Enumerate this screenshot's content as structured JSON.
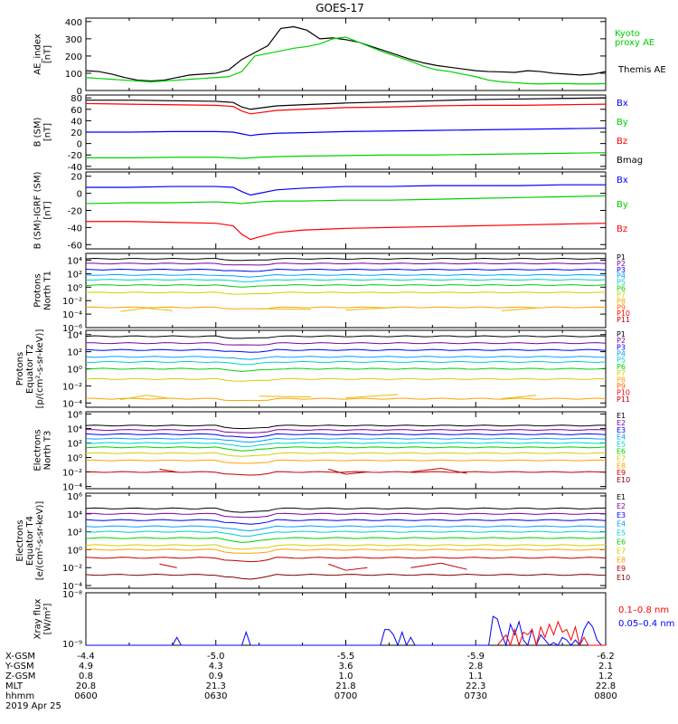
{
  "title": "GOES-17",
  "panels": [
    {
      "id": "ae",
      "ylabel": [
        "AE_index",
        "[nT]"
      ],
      "ylim": [
        0,
        420
      ],
      "yticks": [
        {
          "v": 400,
          "t": "400"
        },
        {
          "v": 300,
          "t": "300"
        },
        {
          "v": 200,
          "t": "200"
        },
        {
          "v": 100,
          "t": "100"
        },
        {
          "v": 0,
          "t": "0"
        }
      ],
      "legend": [
        {
          "text": "Kyoto",
          "color": "#00d000"
        },
        {
          "text": "proxy AE",
          "color": "#00d000"
        },
        {
          "text": "Themis AE",
          "color": "#000000"
        }
      ],
      "series": [
        {
          "name": "Themis AE",
          "color": "#000000",
          "x": [
            0,
            3,
            6,
            9,
            12,
            15,
            18,
            21,
            24,
            27,
            30,
            33,
            36,
            39,
            42,
            45,
            48,
            51,
            54,
            57,
            60,
            63,
            66,
            69,
            72,
            75,
            78,
            81,
            84,
            87,
            90,
            93,
            96,
            99,
            102,
            105,
            108,
            111,
            114,
            117,
            120
          ],
          "y": [
            115,
            110,
            95,
            75,
            60,
            55,
            60,
            75,
            90,
            95,
            100,
            120,
            180,
            220,
            260,
            360,
            370,
            350,
            300,
            305,
            295,
            280,
            255,
            230,
            205,
            180,
            160,
            145,
            135,
            125,
            115,
            110,
            108,
            105,
            115,
            110,
            100,
            95,
            90,
            95,
            110
          ]
        },
        {
          "name": "Kyoto proxy AE",
          "color": "#00d000",
          "x": [
            0,
            3,
            6,
            9,
            12,
            15,
            18,
            21,
            24,
            27,
            30,
            33,
            36,
            39,
            42,
            45,
            48,
            51,
            54,
            57,
            60,
            63,
            66,
            69,
            72,
            75,
            78,
            81,
            84,
            87,
            90,
            93,
            96,
            99,
            102,
            105,
            108,
            111,
            114,
            117,
            120
          ],
          "y": [
            75,
            70,
            65,
            60,
            55,
            50,
            55,
            60,
            65,
            70,
            75,
            80,
            110,
            200,
            215,
            230,
            245,
            255,
            270,
            300,
            310,
            280,
            250,
            220,
            195,
            170,
            140,
            120,
            110,
            95,
            80,
            60,
            50,
            45,
            40,
            38,
            40,
            40,
            38,
            38,
            40
          ]
        }
      ]
    },
    {
      "id": "bsm",
      "ylabel": [
        "B (SM)",
        "[nT]"
      ],
      "ylim": [
        -45,
        85
      ],
      "yticks": [
        {
          "v": 80,
          "t": "80"
        },
        {
          "v": 60,
          "t": "60"
        },
        {
          "v": 40,
          "t": "40"
        },
        {
          "v": 20,
          "t": "20"
        },
        {
          "v": 0,
          "t": "0"
        },
        {
          "v": -20,
          "t": "-20"
        },
        {
          "v": -40,
          "t": "-40"
        }
      ],
      "legend": [
        {
          "text": "Bx",
          "color": "#0000ff"
        },
        {
          "text": "By",
          "color": "#00d000"
        },
        {
          "text": "Bz",
          "color": "#ff0000"
        },
        {
          "text": "Bmag",
          "color": "#000000"
        }
      ],
      "series": [
        {
          "name": "Bmag",
          "color": "#000000",
          "x": [
            0,
            10,
            20,
            30,
            34,
            36,
            38,
            40,
            44,
            50,
            60,
            70,
            80,
            90,
            100,
            110,
            120
          ],
          "y": [
            76,
            76,
            75,
            74,
            72,
            64,
            60,
            62,
            66,
            68,
            71,
            73,
            75,
            77,
            78,
            79,
            80
          ]
        },
        {
          "name": "Bz",
          "color": "#ff0000",
          "x": [
            0,
            10,
            20,
            30,
            34,
            36,
            38,
            40,
            44,
            50,
            60,
            70,
            80,
            90,
            100,
            110,
            120
          ],
          "y": [
            70,
            69,
            68,
            67,
            65,
            57,
            52,
            54,
            58,
            60,
            63,
            64,
            66,
            67,
            67,
            68,
            69
          ]
        },
        {
          "name": "Bx",
          "color": "#0000ff",
          "x": [
            0,
            10,
            20,
            30,
            34,
            36,
            38,
            40,
            44,
            50,
            60,
            70,
            80,
            90,
            100,
            110,
            120
          ],
          "y": [
            20,
            20,
            21,
            21,
            20,
            17,
            14,
            16,
            18,
            19,
            21,
            22,
            23,
            24,
            25,
            26,
            27
          ]
        },
        {
          "name": "By",
          "color": "#00d000",
          "x": [
            0,
            10,
            20,
            30,
            34,
            36,
            38,
            40,
            44,
            50,
            60,
            70,
            80,
            90,
            100,
            110,
            120
          ],
          "y": [
            -25,
            -25,
            -24,
            -24,
            -25,
            -26,
            -25,
            -24,
            -23,
            -22,
            -21,
            -20,
            -20,
            -19,
            -18,
            -17,
            -16
          ]
        }
      ]
    },
    {
      "id": "bigrf",
      "ylabel": [
        "B (SM)-IGRF (SM)",
        "[nT]"
      ],
      "ylim": [
        -65,
        25
      ],
      "yticks": [
        {
          "v": 20,
          "t": "20"
        },
        {
          "v": 0,
          "t": "0"
        },
        {
          "v": -20,
          "t": "-20"
        },
        {
          "v": -40,
          "t": "-40"
        },
        {
          "v": -60,
          "t": "-60"
        }
      ],
      "legend": [
        {
          "text": "Bx",
          "color": "#0000ff"
        },
        {
          "text": "By",
          "color": "#00d000"
        },
        {
          "text": "Bz",
          "color": "#ff0000"
        }
      ],
      "series": [
        {
          "name": "Bx",
          "color": "#0000ff",
          "x": [
            0,
            10,
            20,
            30,
            34,
            36,
            38,
            40,
            44,
            50,
            60,
            70,
            80,
            90,
            100,
            110,
            120
          ],
          "y": [
            7,
            7,
            8,
            8,
            7,
            2,
            -2,
            0,
            4,
            6,
            8,
            8,
            9,
            9,
            9,
            10,
            10
          ]
        },
        {
          "name": "By",
          "color": "#00d000",
          "x": [
            0,
            10,
            20,
            30,
            34,
            36,
            38,
            40,
            44,
            50,
            60,
            70,
            80,
            90,
            100,
            110,
            120
          ],
          "y": [
            -12,
            -11,
            -11,
            -10,
            -11,
            -12,
            -11,
            -10,
            -9,
            -9,
            -8,
            -8,
            -7,
            -6,
            -5,
            -4,
            -3
          ]
        },
        {
          "name": "Bz",
          "color": "#ff0000",
          "x": [
            0,
            10,
            20,
            30,
            34,
            36,
            38,
            40,
            44,
            50,
            60,
            70,
            80,
            90,
            100,
            110,
            120
          ],
          "y": [
            -33,
            -33,
            -34,
            -35,
            -38,
            -48,
            -54,
            -51,
            -46,
            -43,
            -41,
            -40,
            -39,
            -38,
            -37,
            -36,
            -35
          ]
        }
      ]
    }
  ],
  "log_panels": [
    {
      "id": "protons-north",
      "ylabel": [
        "Protons",
        "North T1"
      ],
      "decades": [
        -6,
        5
      ],
      "yticks": [
        {
          "v": 4,
          "t": "10⁴"
        },
        {
          "v": 2,
          "t": "10²"
        },
        {
          "v": 0,
          "t": "10⁰"
        },
        {
          "v": -2,
          "t": "10⁻²"
        },
        {
          "v": -4,
          "t": "10⁻⁴"
        },
        {
          "v": -6,
          "t": "10⁻⁶"
        }
      ],
      "legend": [
        {
          "text": "P1",
          "color": "#000000"
        },
        {
          "text": "P2",
          "color": "#8000a0"
        },
        {
          "text": "P3",
          "color": "#0000ff"
        },
        {
          "text": "P4",
          "color": "#00a0ff"
        },
        {
          "text": "P5",
          "color": "#00d0d0"
        },
        {
          "text": "P6",
          "color": "#00d000"
        },
        {
          "text": "P7",
          "color": "#d0d000"
        },
        {
          "text": "P8",
          "color": "#ffa000"
        },
        {
          "text": "P9",
          "color": "#ff6000"
        },
        {
          "text": "P10",
          "color": "#ff0000"
        },
        {
          "text": "P11",
          "color": "#c00000"
        }
      ],
      "levels": [
        4.2,
        3.5,
        2.6,
        1.8,
        1.1,
        0.3,
        -0.8,
        -3.0
      ]
    },
    {
      "id": "protons-equator",
      "ylabel": [
        "Protons",
        "Equator T2",
        "[p/(cm²-s-sr-keV)]"
      ],
      "decades": [
        -4.5,
        4.5
      ],
      "yticks": [
        {
          "v": 4,
          "t": "10⁴"
        },
        {
          "v": 2,
          "t": "10²"
        },
        {
          "v": 0,
          "t": "10⁰"
        },
        {
          "v": -2,
          "t": "10⁻²"
        },
        {
          "v": -4,
          "t": "10⁻⁴"
        }
      ],
      "legend": [
        {
          "text": "P1",
          "color": "#000000"
        },
        {
          "text": "P2",
          "color": "#8000a0"
        },
        {
          "text": "P3",
          "color": "#0000ff"
        },
        {
          "text": "P4",
          "color": "#00a0ff"
        },
        {
          "text": "P5",
          "color": "#00d0d0"
        },
        {
          "text": "P6",
          "color": "#00d000"
        },
        {
          "text": "P7",
          "color": "#d0d000"
        },
        {
          "text": "P8",
          "color": "#ffa000"
        },
        {
          "text": "P9",
          "color": "#ff6000"
        },
        {
          "text": "P10",
          "color": "#ff0000"
        },
        {
          "text": "P11",
          "color": "#c00000"
        }
      ],
      "levels": [
        3.8,
        3.0,
        2.2,
        1.4,
        0.8,
        0.0,
        -1.2,
        -3.5
      ]
    },
    {
      "id": "electrons-north",
      "ylabel": [
        "Electrons",
        "North T3"
      ],
      "decades": [
        -4.3,
        6.3
      ],
      "yticks": [
        {
          "v": 6,
          "t": "10⁶"
        },
        {
          "v": 4,
          "t": "10⁴"
        },
        {
          "v": 2,
          "t": "10²"
        },
        {
          "v": 0,
          "t": "10⁰"
        },
        {
          "v": -2,
          "t": "10⁻²"
        },
        {
          "v": -4,
          "t": "10⁻⁴"
        }
      ],
      "legend": [
        {
          "text": "E1",
          "color": "#000000"
        },
        {
          "text": "E2",
          "color": "#8000a0"
        },
        {
          "text": "E3",
          "color": "#0000ff"
        },
        {
          "text": "E4",
          "color": "#00a0ff"
        },
        {
          "text": "E5",
          "color": "#00d0d0"
        },
        {
          "text": "E6",
          "color": "#00d000"
        },
        {
          "text": "E7",
          "color": "#d0d000"
        },
        {
          "text": "E8",
          "color": "#ffa000"
        },
        {
          "text": "E9",
          "color": "#c00000"
        },
        {
          "text": "E10",
          "color": "#800000"
        }
      ],
      "levels": [
        4.4,
        3.8,
        3.2,
        2.6,
        2.0,
        1.4,
        0.6,
        -0.4,
        -2.0
      ]
    },
    {
      "id": "electrons-equator",
      "ylabel": [
        "Electrons",
        "Equator T4",
        "[e/(cm²-s-sr-keV)]"
      ],
      "decades": [
        -4.3,
        6.3
      ],
      "yticks": [
        {
          "v": 6,
          "t": "10⁶"
        },
        {
          "v": 4,
          "t": "10⁴"
        },
        {
          "v": 2,
          "t": "10²"
        },
        {
          "v": 0,
          "t": "10⁰"
        },
        {
          "v": -2,
          "t": "10⁻²"
        },
        {
          "v": -4,
          "t": "10⁻⁴"
        }
      ],
      "legend": [
        {
          "text": "E1",
          "color": "#000000"
        },
        {
          "text": "E2",
          "color": "#8000a0"
        },
        {
          "text": "E3",
          "color": "#0000ff"
        },
        {
          "text": "E4",
          "color": "#00a0ff"
        },
        {
          "text": "E5",
          "color": "#00d0d0"
        },
        {
          "text": "E6",
          "color": "#00d000"
        },
        {
          "text": "E7",
          "color": "#d0d000"
        },
        {
          "text": "E8",
          "color": "#ffa000"
        },
        {
          "text": "E9",
          "color": "#c00000"
        },
        {
          "text": "E10",
          "color": "#800000"
        }
      ],
      "levels": [
        4.6,
        4.0,
        3.3,
        2.6,
        2.0,
        1.3,
        0.5,
        0.0,
        -0.9,
        -2.8
      ]
    }
  ],
  "xray": {
    "ylabel": [
      "Xray flux",
      "[W/m²]"
    ],
    "yticks": [
      {
        "t": "10⁻⁸"
      },
      {
        "t": "10⁻⁹"
      }
    ],
    "legend": [
      {
        "text": "0.1–0.8 nm",
        "color": "#ff0000"
      },
      {
        "text": "0.05–0.4 nm",
        "color": "#0000ff"
      }
    ],
    "series": [
      {
        "name": "0.05-0.4 nm",
        "color": "#0000ff",
        "x": [
          0,
          20,
          21,
          22,
          36,
          37,
          38,
          68,
          69,
          70,
          71,
          72,
          73,
          74,
          75,
          76,
          93,
          94,
          95,
          96,
          97,
          98,
          99,
          100,
          101,
          102,
          103,
          104,
          105,
          106,
          107,
          108,
          109,
          110,
          111,
          112,
          113,
          114,
          115,
          116,
          117,
          118,
          119,
          120
        ],
        "y": [
          0,
          0,
          0.15,
          0,
          0,
          0.25,
          0,
          0,
          0.3,
          0.3,
          0.2,
          0,
          0.25,
          0,
          0.15,
          0,
          0,
          0.55,
          0.5,
          0.2,
          0,
          0.4,
          0.2,
          0.45,
          0.1,
          0,
          0.3,
          0,
          0.2,
          0.1,
          0,
          0.05,
          0,
          0.15,
          0.1,
          0,
          0.1,
          0,
          0.3,
          0.45,
          0.35,
          0.1,
          0,
          0
        ]
      },
      {
        "name": "0.1-0.8 nm",
        "color": "#ff0000",
        "x": [
          95,
          96,
          97,
          98,
          99,
          100,
          101,
          102,
          103,
          104,
          105,
          106,
          107,
          108,
          109,
          110,
          111,
          112,
          113,
          114,
          115,
          116,
          117,
          118,
          119,
          120
        ],
        "y": [
          0,
          0.1,
          0.2,
          0,
          0.3,
          0,
          0.25,
          0.2,
          0.3,
          0,
          0.35,
          0.15,
          0.4,
          0.2,
          0.45,
          0.25,
          0.3,
          0.1,
          0.35,
          0,
          0.15,
          0,
          0,
          0,
          0,
          0
        ]
      }
    ]
  },
  "xaxis": {
    "rows": [
      {
        "label": "X-GSM",
        "values": [
          "-4.4",
          "-5.0",
          "-5.5",
          "-5.9",
          "-6.2"
        ]
      },
      {
        "label": "Y-GSM",
        "values": [
          "4.9",
          "4.3",
          "3.6",
          "2.8",
          "2.1"
        ]
      },
      {
        "label": "Z-GSM",
        "values": [
          "0.8",
          "0.9",
          "1.0",
          "1.1",
          "1.2"
        ]
      },
      {
        "label": "MLT",
        "values": [
          "20.8",
          "21.3",
          "21.8",
          "22.3",
          "22.8"
        ]
      },
      {
        "label": "hhmm",
        "values": [
          "0600",
          "0630",
          "0700",
          "0730",
          "0800"
        ]
      }
    ],
    "date": "2019 Apr 25"
  },
  "chart_data": {
    "type": "line",
    "title": "GOES-17",
    "x_range_minutes": [
      0,
      120
    ],
    "x_labels": [
      "0600",
      "0630",
      "0700",
      "0730",
      "0800"
    ],
    "date": "2019 Apr 25"
  }
}
